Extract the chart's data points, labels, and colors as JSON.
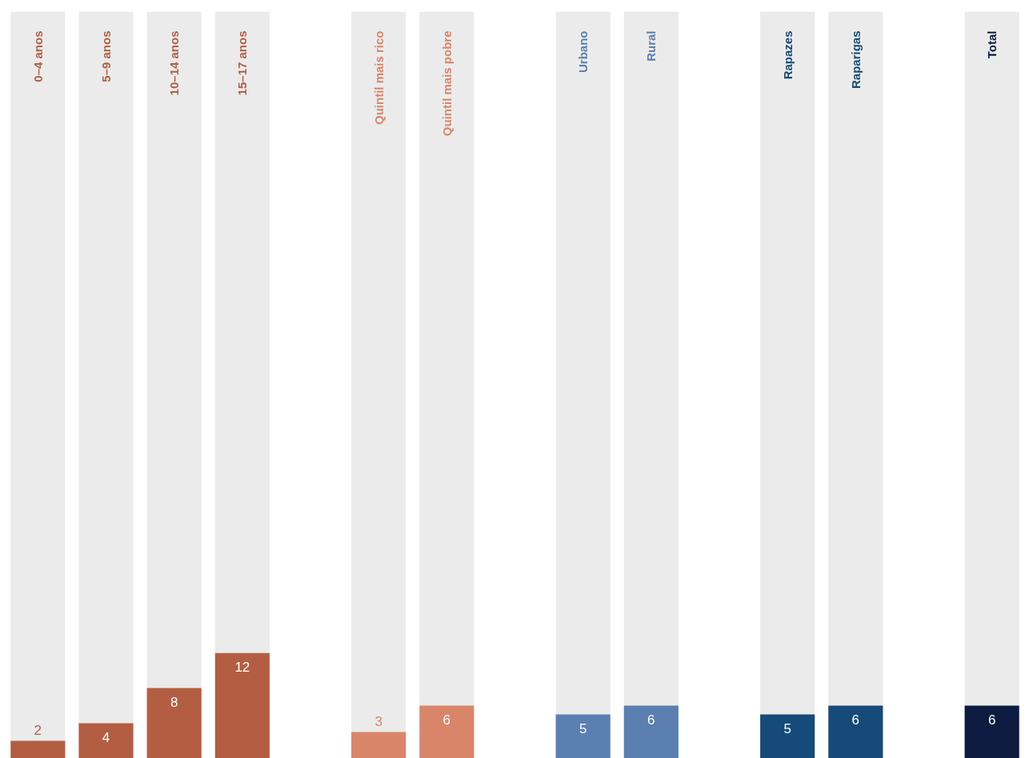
{
  "chart_data": {
    "type": "bar",
    "categories": [
      "0–4 anos",
      "5–9 anos",
      "10–14 anos",
      "15–17 anos",
      null,
      "Quintil mais rico",
      "Quintil mais pobre",
      null,
      "Urbano",
      "Rural",
      null,
      "Rapazes",
      "Raparigas",
      null,
      "Total"
    ],
    "values": [
      2,
      4,
      8,
      12,
      null,
      3,
      6,
      null,
      5,
      6,
      null,
      5,
      6,
      null,
      6
    ],
    "colors": [
      "#b35e42",
      "#b35e42",
      "#b35e42",
      "#b35e42",
      null,
      "#d9856a",
      "#d9856a",
      null,
      "#5b7fb0",
      "#5b7fb0",
      null,
      "#164a78",
      "#164a78",
      null,
      "#0c1b3f"
    ],
    "ylim": [
      0,
      85
    ],
    "data_labels": true,
    "tick_labels": false,
    "grid": false
  }
}
